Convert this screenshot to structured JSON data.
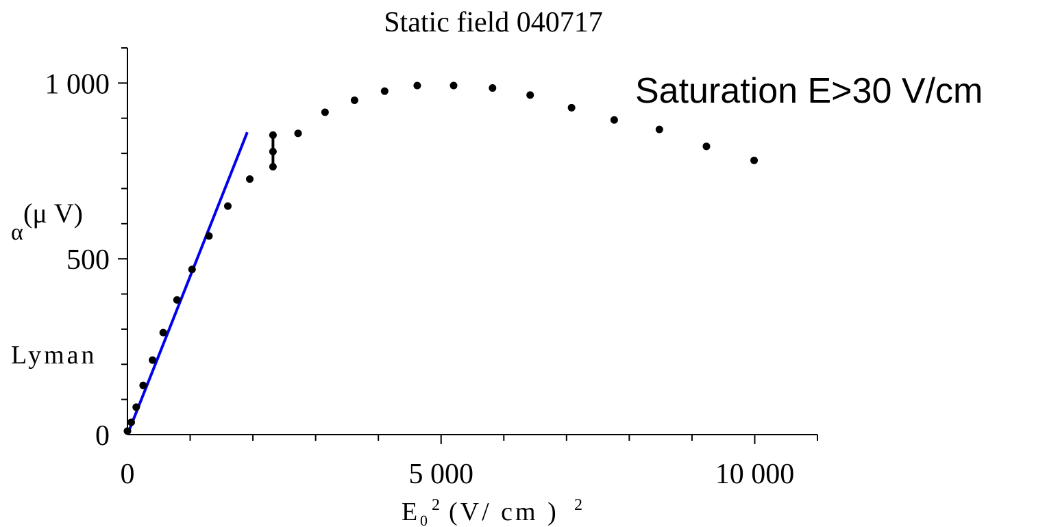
{
  "chart_data": {
    "type": "scatter",
    "title": "Static field 040717",
    "xlabel": {
      "base": "E",
      "sub": "0",
      "sup": "2",
      "middle": "(V/ cm )",
      "sup2": "2"
    },
    "ylabel": {
      "greek": "α",
      "unit": "(μ V)"
    },
    "ylabel_secondary": "Lyman",
    "annotation": "Saturation E>30 V/cm",
    "xlim": [
      0,
      11000
    ],
    "ylim": [
      0,
      1100
    ],
    "x_ticks": [
      {
        "value": 0,
        "label": "0"
      },
      {
        "value": 5000,
        "label": "5 000"
      },
      {
        "value": 10000,
        "label": "10 000"
      }
    ],
    "y_ticks": [
      {
        "value": 0,
        "label": "0"
      },
      {
        "value": 500,
        "label": "500"
      },
      {
        "value": 1000,
        "label": "1 000"
      }
    ],
    "x_minor_step": 1000,
    "y_minor_step": 100,
    "grid": false,
    "colors": {
      "points": "#000000",
      "fit_line": "#0000ee",
      "axis": "#000000"
    },
    "series": [
      {
        "points": [
          {
            "x": 0,
            "y": 10
          },
          {
            "x": 60,
            "y": 35
          },
          {
            "x": 140,
            "y": 78
          },
          {
            "x": 250,
            "y": 140
          },
          {
            "x": 400,
            "y": 212
          },
          {
            "x": 570,
            "y": 290
          },
          {
            "x": 790,
            "y": 383
          },
          {
            "x": 1030,
            "y": 470
          },
          {
            "x": 1300,
            "y": 565
          },
          {
            "x": 1600,
            "y": 650
          },
          {
            "x": 1950,
            "y": 727
          },
          {
            "x": 2320,
            "y": 852
          },
          {
            "x": 2320,
            "y": 805
          },
          {
            "x": 2320,
            "y": 762
          },
          {
            "x": 2720,
            "y": 857
          },
          {
            "x": 3150,
            "y": 917
          },
          {
            "x": 3620,
            "y": 951
          },
          {
            "x": 4100,
            "y": 977
          },
          {
            "x": 4620,
            "y": 993
          },
          {
            "x": 5200,
            "y": 993
          },
          {
            "x": 5820,
            "y": 986
          },
          {
            "x": 6420,
            "y": 966
          },
          {
            "x": 7080,
            "y": 930
          },
          {
            "x": 7760,
            "y": 895
          },
          {
            "x": 8480,
            "y": 868
          },
          {
            "x": 9230,
            "y": 820
          },
          {
            "x": 9990,
            "y": 780
          }
        ],
        "error_bar": {
          "x": 2320,
          "low": 755,
          "high": 860
        }
      }
    ],
    "fit_line": {
      "x": [
        0,
        1910
      ],
      "y": [
        0,
        860
      ]
    }
  }
}
